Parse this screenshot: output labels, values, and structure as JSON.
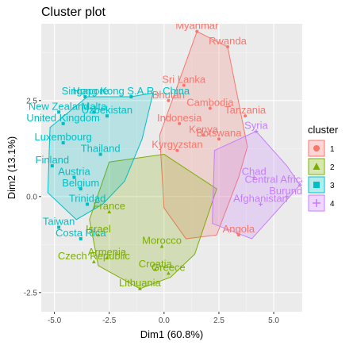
{
  "chart_data": {
    "type": "scatter",
    "title": "Cluster plot",
    "xlabel": "Dim1 (60.8%)",
    "ylabel": "Dim2 (13.1%)",
    "xlim": [
      -5.6,
      6.3
    ],
    "ylim": [
      -3.0,
      4.5
    ],
    "x_ticks": [
      -5.0,
      -2.5,
      0.0,
      2.5,
      5.0
    ],
    "y_ticks": [
      -2.5,
      0.0,
      2.5
    ],
    "x_tick_labels": [
      "-5.0",
      "-2.5",
      "0.0",
      "2.5",
      "5.0"
    ],
    "y_tick_labels": [
      "-2.5",
      "0.0",
      "2.5"
    ],
    "grid": true,
    "legend": {
      "title": "cluster",
      "placement": "right",
      "entries": [
        {
          "label": "1",
          "color": "#F8766D",
          "shape": "circle"
        },
        {
          "label": "2",
          "color": "#7CAE00",
          "shape": "triangle"
        },
        {
          "label": "3",
          "color": "#00BFC4",
          "shape": "square"
        },
        {
          "label": "4",
          "color": "#C77CFF",
          "shape": "cross-square"
        }
      ]
    },
    "series": [
      {
        "name": "1",
        "color": "#F8766D",
        "hull": [
          [
            1.5,
            4.3
          ],
          [
            2.9,
            3.9
          ],
          [
            3.8,
            1.3
          ],
          [
            3.4,
            0.5
          ],
          [
            2.4,
            -1.0
          ],
          [
            1.0,
            -1.1
          ],
          [
            0.0,
            -0.3
          ],
          [
            -0.2,
            1.6
          ]
        ],
        "points": [
          {
            "label": "Myanmar",
            "x": 1.5,
            "y": 4.3
          },
          {
            "label": "Rwanda",
            "x": 2.9,
            "y": 3.9
          },
          {
            "label": "Sri Lanka",
            "x": 0.9,
            "y": 2.9
          },
          {
            "label": "Bhutan",
            "x": 0.2,
            "y": 2.5
          },
          {
            "label": "Cambodia",
            "x": 2.1,
            "y": 2.3
          },
          {
            "label": "Tanzania",
            "x": 3.7,
            "y": 2.1
          },
          {
            "label": "Indonesia",
            "x": 0.7,
            "y": 1.9
          },
          {
            "label": "Kenya",
            "x": 1.8,
            "y": 1.6
          },
          {
            "label": "Botswana",
            "x": 2.5,
            "y": 1.5
          },
          {
            "label": "Kyrgyzstan",
            "x": 0.6,
            "y": 1.2
          },
          {
            "label": "Angola",
            "x": 3.4,
            "y": -1.0
          }
        ]
      },
      {
        "name": "2",
        "color": "#7CAE00",
        "hull": [
          [
            -2.5,
            0.9
          ],
          [
            0.0,
            1.1
          ],
          [
            2.4,
            0.2
          ],
          [
            1.4,
            -1.5
          ],
          [
            0.3,
            -2.1
          ],
          [
            -1.1,
            -2.4
          ],
          [
            -3.0,
            -1.8
          ],
          [
            -3.4,
            -0.6
          ]
        ],
        "points": [
          {
            "label": "Lithuania",
            "x": -1.1,
            "y": -2.4
          },
          {
            "label": "Greece",
            "x": 0.2,
            "y": -2.0
          },
          {
            "label": "Croatia",
            "x": -0.4,
            "y": -1.9
          },
          {
            "label": "Morocco",
            "x": -0.1,
            "y": -1.3
          },
          {
            "label": "Armenia",
            "x": -2.6,
            "y": -1.6
          },
          {
            "label": "Czech Republic",
            "x": -3.2,
            "y": -1.7
          },
          {
            "label": "Israel",
            "x": -3.0,
            "y": -1.0
          },
          {
            "label": "France",
            "x": -2.5,
            "y": -0.4
          }
        ]
      },
      {
        "name": "3",
        "color": "#00BFC4",
        "hull": [
          [
            -1.5,
            2.6
          ],
          [
            -0.5,
            2.7
          ],
          [
            -1.0,
            1.5
          ],
          [
            -1.8,
            0.4
          ],
          [
            -2.8,
            -0.2
          ],
          [
            -4.0,
            -0.6
          ],
          [
            -5.3,
            0.1
          ],
          [
            -5.2,
            1.8
          ],
          [
            -3.5,
            2.6
          ]
        ],
        "points": [
          {
            "label": "Hong Kong S.A.R., China",
            "x": -1.5,
            "y": 2.6
          },
          {
            "label": "Singapore",
            "x": -3.6,
            "y": 2.6
          },
          {
            "label": "New Zealand",
            "x": -4.8,
            "y": 2.2
          },
          {
            "label": "Malta",
            "x": -3.2,
            "y": 2.2
          },
          {
            "label": "Uzbekistan",
            "x": -2.6,
            "y": 2.1
          },
          {
            "label": "United Kingdom",
            "x": -4.6,
            "y": 1.9
          },
          {
            "label": "Luxembourg",
            "x": -4.6,
            "y": 1.4
          },
          {
            "label": "Thailand",
            "x": -2.9,
            "y": 1.1
          },
          {
            "label": "Finland",
            "x": -5.1,
            "y": 0.8
          },
          {
            "label": "Austria",
            "x": -4.1,
            "y": 0.5
          },
          {
            "label": "Belgium",
            "x": -3.8,
            "y": 0.2
          },
          {
            "label": "Trinidad",
            "x": -3.5,
            "y": -0.2
          },
          {
            "label": "Taiwan",
            "x": -4.8,
            "y": -0.8
          },
          {
            "label": "Costa Rica",
            "x": -3.8,
            "y": -1.1
          }
        ]
      },
      {
        "name": "4",
        "color": "#C77CFF",
        "hull": [
          [
            4.2,
            1.7
          ],
          [
            5.6,
            0.8
          ],
          [
            6.2,
            0.3
          ],
          [
            4.0,
            -1.1
          ],
          [
            2.2,
            -0.7
          ],
          [
            2.3,
            1.2
          ]
        ],
        "points": [
          {
            "label": "Syria",
            "x": 4.2,
            "y": 1.7
          },
          {
            "label": "Central African Republic",
            "x": 6.2,
            "y": 0.3
          },
          {
            "label": "Burundi",
            "x": 5.6,
            "y": 0.0
          },
          {
            "label": "Afghanistan",
            "x": 4.4,
            "y": -0.2
          },
          {
            "label": "Chad",
            "x": 4.1,
            "y": 0.5
          }
        ]
      }
    ]
  }
}
